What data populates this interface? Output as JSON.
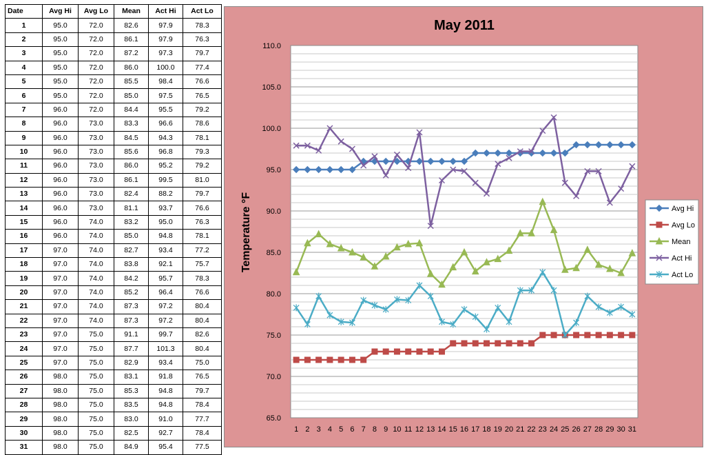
{
  "table": {
    "headers": [
      "Date",
      "Avg Hi",
      "Avg Lo",
      "Mean",
      "Act Hi",
      "Act Lo"
    ],
    "rows": [
      [
        "1",
        "95.0",
        "72.0",
        "82.6",
        "97.9",
        "78.3"
      ],
      [
        "2",
        "95.0",
        "72.0",
        "86.1",
        "97.9",
        "76.3"
      ],
      [
        "3",
        "95.0",
        "72.0",
        "87.2",
        "97.3",
        "79.7"
      ],
      [
        "4",
        "95.0",
        "72.0",
        "86.0",
        "100.0",
        "77.4"
      ],
      [
        "5",
        "95.0",
        "72.0",
        "85.5",
        "98.4",
        "76.6"
      ],
      [
        "6",
        "95.0",
        "72.0",
        "85.0",
        "97.5",
        "76.5"
      ],
      [
        "7",
        "96.0",
        "72.0",
        "84.4",
        "95.5",
        "79.2"
      ],
      [
        "8",
        "96.0",
        "73.0",
        "83.3",
        "96.6",
        "78.6"
      ],
      [
        "9",
        "96.0",
        "73.0",
        "84.5",
        "94.3",
        "78.1"
      ],
      [
        "10",
        "96.0",
        "73.0",
        "85.6",
        "96.8",
        "79.3"
      ],
      [
        "11",
        "96.0",
        "73.0",
        "86.0",
        "95.2",
        "79.2"
      ],
      [
        "12",
        "96.0",
        "73.0",
        "86.1",
        "99.5",
        "81.0"
      ],
      [
        "13",
        "96.0",
        "73.0",
        "82.4",
        "88.2",
        "79.7"
      ],
      [
        "14",
        "96.0",
        "73.0",
        "81.1",
        "93.7",
        "76.6"
      ],
      [
        "15",
        "96.0",
        "74.0",
        "83.2",
        "95.0",
        "76.3"
      ],
      [
        "16",
        "96.0",
        "74.0",
        "85.0",
        "94.8",
        "78.1"
      ],
      [
        "17",
        "97.0",
        "74.0",
        "82.7",
        "93.4",
        "77.2"
      ],
      [
        "18",
        "97.0",
        "74.0",
        "83.8",
        "92.1",
        "75.7"
      ],
      [
        "19",
        "97.0",
        "74.0",
        "84.2",
        "95.7",
        "78.3"
      ],
      [
        "20",
        "97.0",
        "74.0",
        "85.2",
        "96.4",
        "76.6"
      ],
      [
        "21",
        "97.0",
        "74.0",
        "87.3",
        "97.2",
        "80.4"
      ],
      [
        "22",
        "97.0",
        "74.0",
        "87.3",
        "97.2",
        "80.4"
      ],
      [
        "23",
        "97.0",
        "75.0",
        "91.1",
        "99.7",
        "82.6"
      ],
      [
        "24",
        "97.0",
        "75.0",
        "87.7",
        "101.3",
        "80.4"
      ],
      [
        "25",
        "97.0",
        "75.0",
        "82.9",
        "93.4",
        "75.0"
      ],
      [
        "26",
        "98.0",
        "75.0",
        "83.1",
        "91.8",
        "76.5"
      ],
      [
        "27",
        "98.0",
        "75.0",
        "85.3",
        "94.8",
        "79.7"
      ],
      [
        "28",
        "98.0",
        "75.0",
        "83.5",
        "94.8",
        "78.4"
      ],
      [
        "29",
        "98.0",
        "75.0",
        "83.0",
        "91.0",
        "77.7"
      ],
      [
        "30",
        "98.0",
        "75.0",
        "82.5",
        "92.7",
        "78.4"
      ],
      [
        "31",
        "98.0",
        "75.0",
        "84.9",
        "95.4",
        "77.5"
      ]
    ]
  },
  "chart_data": {
    "type": "line",
    "title": "May 2011",
    "xlabel": "",
    "ylabel": "Temperature °F",
    "ylim": [
      65.0,
      110.0
    ],
    "ytick_step": 5,
    "ytick_labels": [
      "65.0",
      "70.0",
      "75.0",
      "80.0",
      "85.0",
      "90.0",
      "95.0",
      "100.0",
      "105.0",
      "110.0"
    ],
    "grid": true,
    "legend_position": "right",
    "x": [
      1,
      2,
      3,
      4,
      5,
      6,
      7,
      8,
      9,
      10,
      11,
      12,
      13,
      14,
      15,
      16,
      17,
      18,
      19,
      20,
      21,
      22,
      23,
      24,
      25,
      26,
      27,
      28,
      29,
      30,
      31
    ],
    "series": [
      {
        "name": "Avg Hi",
        "color": "#4a7ebb",
        "marker": "diamond",
        "values": [
          95.0,
          95.0,
          95.0,
          95.0,
          95.0,
          95.0,
          96.0,
          96.0,
          96.0,
          96.0,
          96.0,
          96.0,
          96.0,
          96.0,
          96.0,
          96.0,
          97.0,
          97.0,
          97.0,
          97.0,
          97.0,
          97.0,
          97.0,
          97.0,
          97.0,
          98.0,
          98.0,
          98.0,
          98.0,
          98.0,
          98.0
        ]
      },
      {
        "name": "Avg Lo",
        "color": "#be4b48",
        "marker": "square",
        "values": [
          72.0,
          72.0,
          72.0,
          72.0,
          72.0,
          72.0,
          72.0,
          73.0,
          73.0,
          73.0,
          73.0,
          73.0,
          73.0,
          73.0,
          74.0,
          74.0,
          74.0,
          74.0,
          74.0,
          74.0,
          74.0,
          74.0,
          75.0,
          75.0,
          75.0,
          75.0,
          75.0,
          75.0,
          75.0,
          75.0,
          75.0
        ]
      },
      {
        "name": "Mean",
        "color": "#98b954",
        "marker": "triangle",
        "values": [
          82.6,
          86.1,
          87.2,
          86.0,
          85.5,
          85.0,
          84.4,
          83.3,
          84.5,
          85.6,
          86.0,
          86.1,
          82.4,
          81.1,
          83.2,
          85.0,
          82.7,
          83.8,
          84.2,
          85.2,
          87.3,
          87.3,
          91.1,
          87.7,
          82.9,
          83.1,
          85.3,
          83.5,
          83.0,
          82.5,
          84.9
        ]
      },
      {
        "name": "Act Hi",
        "color": "#7d60a0",
        "marker": "x",
        "values": [
          97.9,
          97.9,
          97.3,
          100.0,
          98.4,
          97.5,
          95.5,
          96.6,
          94.3,
          96.8,
          95.2,
          99.5,
          88.2,
          93.7,
          95.0,
          94.8,
          93.4,
          92.1,
          95.7,
          96.4,
          97.2,
          97.2,
          99.7,
          101.3,
          93.4,
          91.8,
          94.8,
          94.8,
          91.0,
          92.7,
          95.4
        ]
      },
      {
        "name": "Act Lo",
        "color": "#4bacc6",
        "marker": "star",
        "values": [
          78.3,
          76.3,
          79.7,
          77.4,
          76.6,
          76.5,
          79.2,
          78.6,
          78.1,
          79.3,
          79.2,
          81.0,
          79.7,
          76.6,
          76.3,
          78.1,
          77.2,
          75.7,
          78.3,
          76.6,
          80.4,
          80.4,
          82.6,
          80.4,
          75.0,
          76.5,
          79.7,
          78.4,
          77.7,
          78.4,
          77.5
        ]
      }
    ]
  }
}
